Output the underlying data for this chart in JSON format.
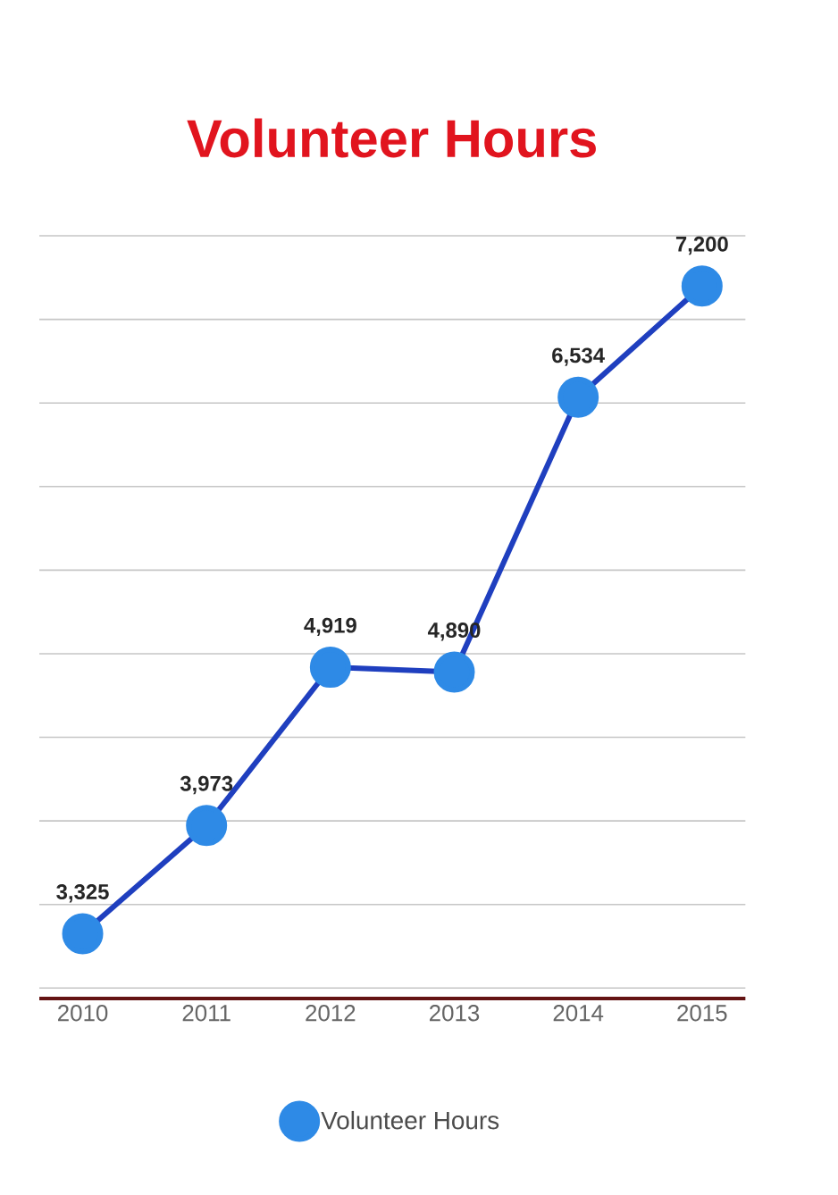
{
  "chart_data": {
    "type": "line",
    "title": "Volunteer Hours",
    "categories": [
      "2010",
      "2011",
      "2012",
      "2013",
      "2014",
      "2015"
    ],
    "series": [
      {
        "name": "Volunteer Hours",
        "color": "#1f3fbf",
        "values": [
          3325,
          3973,
          4919,
          4890,
          6534,
          7200
        ],
        "value_labels": [
          "3,325",
          "3,973",
          "4,919",
          "4,890",
          "6,534",
          "7,200"
        ]
      }
    ],
    "marker": "circle",
    "line_style": "solid",
    "grid": "y",
    "tick_labels": "x",
    "legend": "bottom"
  }
}
